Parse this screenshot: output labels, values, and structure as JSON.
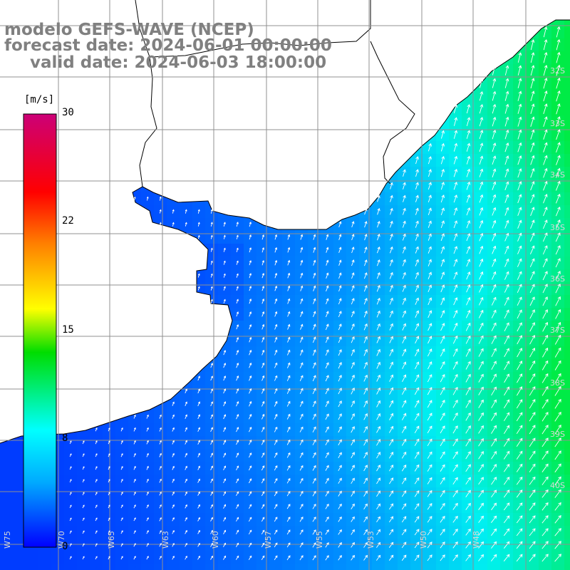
{
  "title": {
    "model": "modelo GEFS-WAVE (NCEP)",
    "forecast": "forecast date: 2024-06-01 00:00:00",
    "valid": "valid date: 2024-06-03 18:00:00"
  },
  "colorbar": {
    "unit": "[m/s]",
    "min": 0,
    "max": 30,
    "ticks": [
      "30",
      "22",
      "15",
      "8",
      "0"
    ],
    "colors": [
      "#0000ff",
      "#00aaff",
      "#00ffff",
      "#00dd00",
      "#ffff00",
      "#ff8000",
      "#ff0000",
      "#cc0077"
    ]
  },
  "map": {
    "lon_labels": [
      "W75",
      "W70",
      "W65",
      "W63",
      "W60",
      "W57",
      "W55",
      "W53",
      "W50",
      "W48"
    ],
    "lat_labels": [
      "32S",
      "33S",
      "34S",
      "35S",
      "36S",
      "37S",
      "38S",
      "39S",
      "40S"
    ],
    "field": "wind speed",
    "land_color": "#ffffff",
    "coast_color": "#000000",
    "grid_color": "#909090"
  }
}
